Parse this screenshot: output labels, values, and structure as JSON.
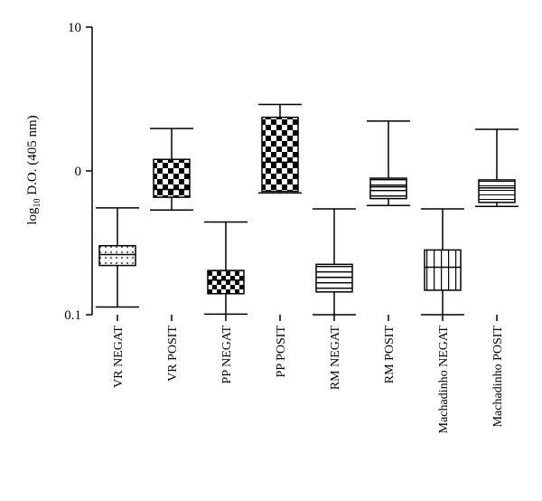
{
  "chart_data": {
    "type": "box",
    "ylabel": {
      "main": "log",
      "sub": "10",
      "rest": " D.O. (405 nm)"
    },
    "yscale": "log",
    "ylim": [
      0.1,
      10
    ],
    "yticks": [
      {
        "value": 10,
        "label": "10"
      },
      {
        "value": 1,
        "label": "0"
      },
      {
        "value": 0.1,
        "label": "0.1"
      }
    ],
    "categories": [
      "VR NEGAT",
      "VR POSIT",
      "PP NEGAT",
      "PP POSIT",
      "RM NEGAT",
      "RM POSIT",
      "Machadinho NEGAT",
      "Machadinho POSIT"
    ],
    "boxes": [
      {
        "category": "VR NEGAT",
        "pattern": "dots",
        "min": 0.113,
        "q1": 0.22,
        "median": 0.262,
        "q3": 0.302,
        "max": 0.553
      },
      {
        "category": "VR POSIT",
        "pattern": "checker",
        "min": 0.535,
        "q1": 0.656,
        "median": 0.743,
        "q3": 1.203,
        "max": 1.973
      },
      {
        "category": "PP NEGAT",
        "pattern": "checker-small",
        "min": 0.101,
        "q1": 0.14,
        "median": 0.174,
        "q3": 0.203,
        "max": 0.441
      },
      {
        "category": "PP POSIT",
        "pattern": "checker",
        "min": 0.702,
        "q1": 0.721,
        "median": 1.15,
        "q3": 2.36,
        "max": 2.9
      },
      {
        "category": "RM NEGAT",
        "pattern": "h-lines",
        "min": 0.1,
        "q1": 0.144,
        "median": 0.182,
        "q3": 0.224,
        "max": 0.544
      },
      {
        "category": "RM POSIT",
        "pattern": "h-lines",
        "min": 0.575,
        "q1": 0.642,
        "median": 0.775,
        "q3": 0.89,
        "max": 2.22
      },
      {
        "category": "Machadinho NEGAT",
        "pattern": "v-lines",
        "min": 0.1,
        "q1": 0.148,
        "median": 0.214,
        "q3": 0.282,
        "max": 0.544
      },
      {
        "category": "Machadinho POSIT",
        "pattern": "h-lines-fine",
        "min": 0.566,
        "q1": 0.604,
        "median": 0.762,
        "q3": 0.866,
        "max": 1.945
      }
    ]
  }
}
